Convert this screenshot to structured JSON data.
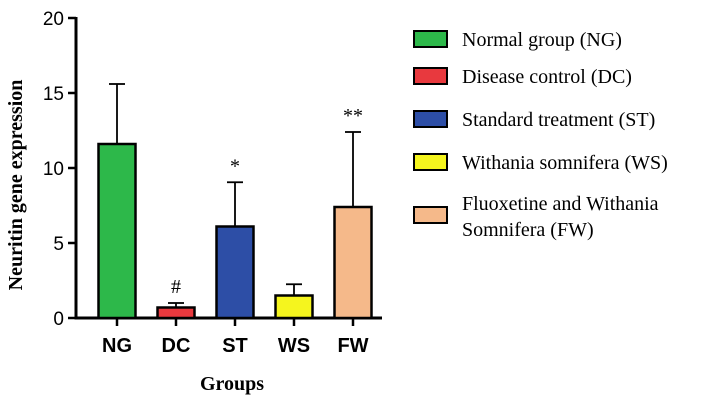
{
  "chart_data": {
    "type": "bar",
    "title": "",
    "xlabel": "Groups",
    "ylabel": "Neuritin gene expression",
    "ylim": [
      0,
      20
    ],
    "yticks": [
      0,
      5,
      10,
      15,
      20
    ],
    "categories": [
      "NG",
      "DC",
      "ST",
      "WS",
      "FW"
    ],
    "values": [
      11.6,
      0.7,
      6.1,
      1.5,
      7.4
    ],
    "errors": [
      4.0,
      0.3,
      2.95,
      0.75,
      5.0
    ],
    "significance": [
      "",
      "#",
      "*",
      "",
      "**"
    ],
    "colors": [
      "#2db84a",
      "#e8393e",
      "#2d4ea6",
      "#f5f51e",
      "#f5b98a"
    ],
    "legend": [
      {
        "lines": [
          "Normal group (NG)"
        ]
      },
      {
        "lines": [
          "Disease control (DC)"
        ]
      },
      {
        "lines": [
          "Standard treatment (ST)"
        ]
      },
      {
        "lines": [
          "Withania somnifera (WS)"
        ]
      },
      {
        "lines": [
          "Fluoxetine and Withania",
          "Somnifera (FW)"
        ]
      }
    ],
    "legend_position": "right"
  }
}
